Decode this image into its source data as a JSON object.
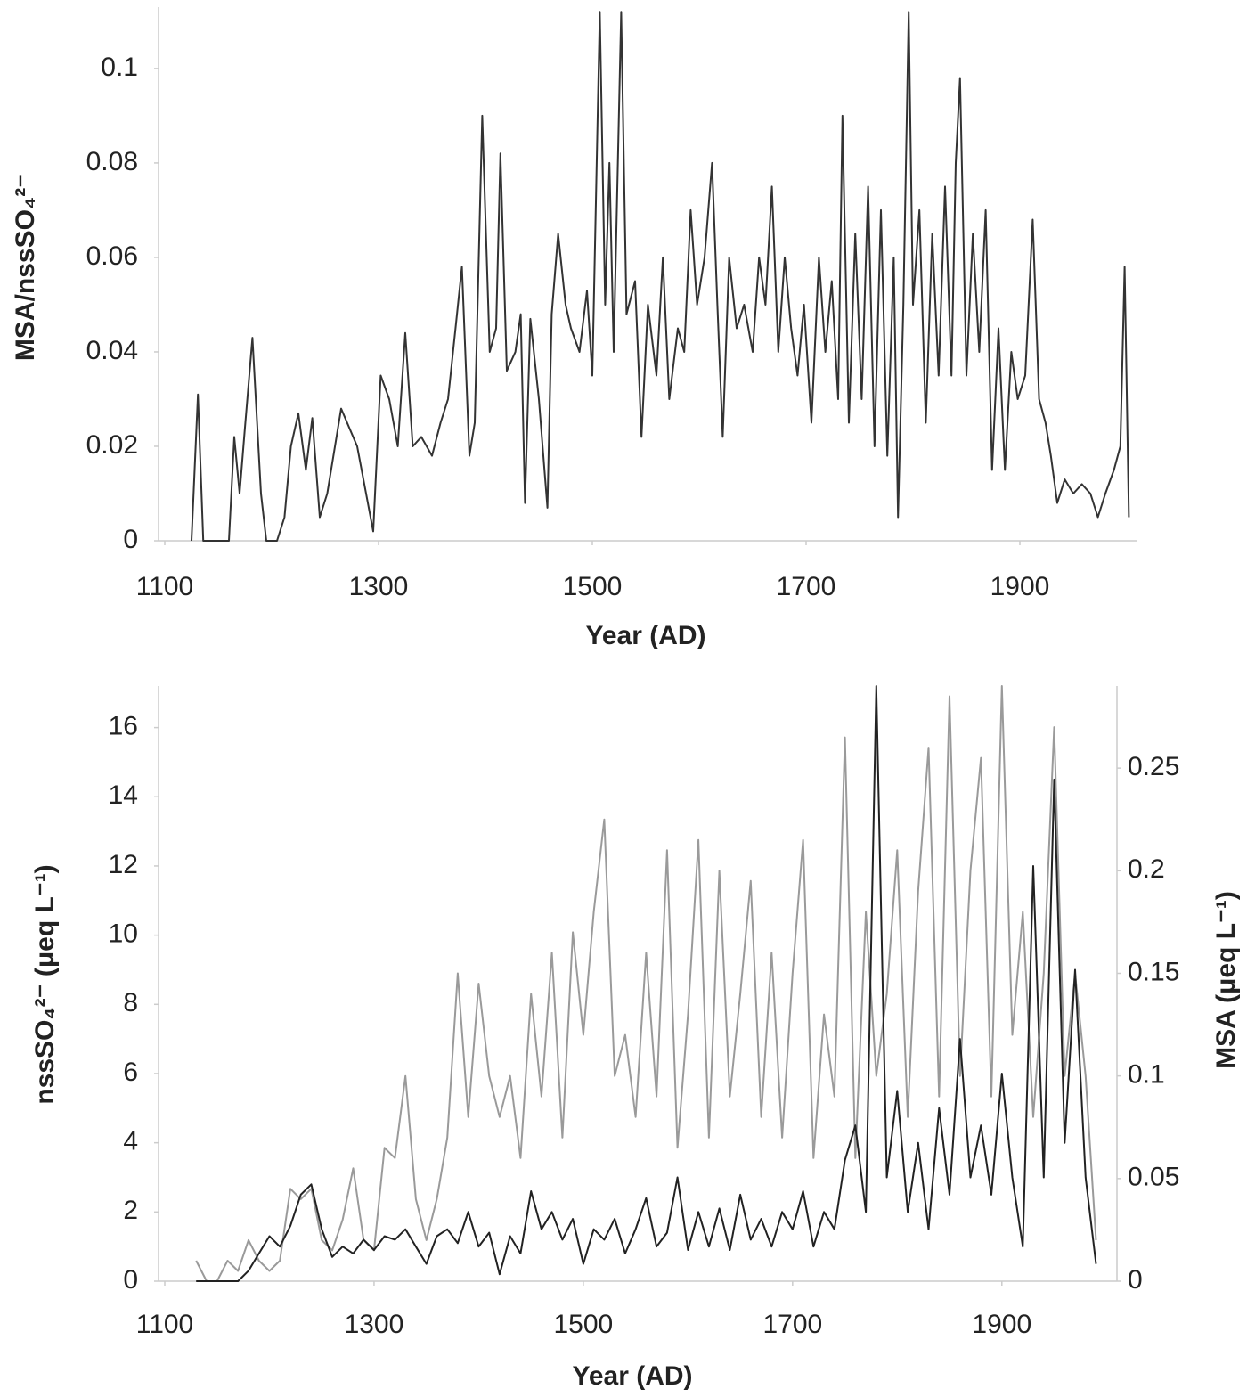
{
  "chart_data": [
    {
      "type": "line",
      "xlabel": "Year (AD)",
      "ylabel": "MSA/nssSO₄²⁻",
      "xlim": [
        1100,
        2010
      ],
      "xticks": [
        1100,
        1300,
        1500,
        1700,
        1900
      ],
      "ylim": [
        0,
        0.113
      ],
      "yticks": [
        0,
        0.02,
        0.04,
        0.06,
        0.08,
        0.1
      ],
      "grid": false,
      "x": [
        1125,
        1131,
        1136,
        1150,
        1160,
        1165,
        1170,
        1175,
        1182,
        1190,
        1195,
        1205,
        1212,
        1218,
        1225,
        1232,
        1238,
        1245,
        1252,
        1265,
        1280,
        1295,
        1302,
        1310,
        1318,
        1325,
        1332,
        1340,
        1350,
        1358,
        1365,
        1372,
        1378,
        1385,
        1390,
        1397,
        1404,
        1410,
        1414,
        1420,
        1428,
        1433,
        1437,
        1442,
        1450,
        1458,
        1462,
        1468,
        1475,
        1480,
        1488,
        1495,
        1500,
        1507,
        1512,
        1516,
        1520,
        1527,
        1532,
        1540,
        1546,
        1552,
        1560,
        1566,
        1572,
        1580,
        1586,
        1592,
        1598,
        1605,
        1612,
        1617,
        1622,
        1628,
        1635,
        1642,
        1650,
        1656,
        1662,
        1668,
        1674,
        1680,
        1686,
        1692,
        1698,
        1705,
        1712,
        1718,
        1724,
        1730,
        1734,
        1740,
        1746,
        1752,
        1758,
        1764,
        1770,
        1776,
        1782,
        1786,
        1791,
        1796,
        1800,
        1806,
        1812,
        1818,
        1824,
        1830,
        1836,
        1840,
        1844,
        1850,
        1856,
        1862,
        1868,
        1874,
        1880,
        1886,
        1892,
        1898,
        1905,
        1912,
        1918,
        1924,
        1929,
        1935,
        1942,
        1950,
        1958,
        1966,
        1973,
        1980,
        1988,
        1994,
        1998,
        2002
      ],
      "values": [
        0,
        0.031,
        0,
        0,
        0,
        0.022,
        0.01,
        0.024,
        0.043,
        0.01,
        0,
        0,
        0.005,
        0.02,
        0.027,
        0.015,
        0.026,
        0.005,
        0.01,
        0.028,
        0.02,
        0.002,
        0.035,
        0.03,
        0.02,
        0.044,
        0.02,
        0.022,
        0.018,
        0.025,
        0.03,
        0.045,
        0.058,
        0.018,
        0.025,
        0.09,
        0.04,
        0.045,
        0.082,
        0.036,
        0.04,
        0.048,
        0.008,
        0.047,
        0.03,
        0.007,
        0.048,
        0.065,
        0.05,
        0.045,
        0.04,
        0.053,
        0.035,
        0.112,
        0.05,
        0.08,
        0.04,
        0.112,
        0.048,
        0.055,
        0.022,
        0.05,
        0.035,
        0.06,
        0.03,
        0.045,
        0.04,
        0.07,
        0.05,
        0.06,
        0.08,
        0.05,
        0.022,
        0.06,
        0.045,
        0.05,
        0.04,
        0.06,
        0.05,
        0.075,
        0.04,
        0.06,
        0.045,
        0.035,
        0.05,
        0.025,
        0.06,
        0.04,
        0.055,
        0.03,
        0.09,
        0.025,
        0.065,
        0.03,
        0.075,
        0.02,
        0.07,
        0.018,
        0.06,
        0.005,
        0.05,
        0.112,
        0.05,
        0.07,
        0.025,
        0.065,
        0.035,
        0.075,
        0.035,
        0.08,
        0.098,
        0.035,
        0.065,
        0.04,
        0.07,
        0.015,
        0.045,
        0.015,
        0.04,
        0.03,
        0.035,
        0.068,
        0.03,
        0.025,
        0.018,
        0.008,
        0.013,
        0.01,
        0.012,
        0.01,
        0.005,
        0.01,
        0.015,
        0.02,
        0.058,
        0.005
      ],
      "color": "#333333"
    },
    {
      "type": "line",
      "xlabel": "Year (AD)",
      "ylabel": "nssSO₄²⁻ (μeq L⁻¹)",
      "y2label": "MSA (μeq L⁻¹)",
      "xlim": [
        1100,
        2010
      ],
      "xticks": [
        1100,
        1300,
        1500,
        1700,
        1900
      ],
      "ylim": [
        0,
        17.2
      ],
      "yticks": [
        0,
        2,
        4,
        6,
        8,
        10,
        12,
        14,
        16
      ],
      "y2lim": [
        0,
        0.29
      ],
      "y2ticks": [
        0,
        0.05,
        0.1,
        0.15,
        0.2,
        0.25
      ],
      "grid": false,
      "x": [
        1130,
        1140,
        1150,
        1160,
        1170,
        1180,
        1190,
        1200,
        1210,
        1220,
        1230,
        1240,
        1250,
        1260,
        1270,
        1280,
        1290,
        1300,
        1310,
        1320,
        1330,
        1340,
        1350,
        1360,
        1370,
        1380,
        1390,
        1400,
        1410,
        1420,
        1430,
        1440,
        1450,
        1460,
        1470,
        1480,
        1490,
        1500,
        1510,
        1520,
        1530,
        1540,
        1550,
        1560,
        1570,
        1580,
        1590,
        1600,
        1610,
        1620,
        1630,
        1640,
        1650,
        1660,
        1670,
        1680,
        1690,
        1700,
        1710,
        1720,
        1730,
        1740,
        1750,
        1760,
        1770,
        1780,
        1790,
        1800,
        1810,
        1820,
        1830,
        1840,
        1850,
        1860,
        1870,
        1880,
        1890,
        1900,
        1910,
        1920,
        1930,
        1940,
        1950,
        1960,
        1970,
        1980,
        1990
      ],
      "series": [
        {
          "color": "#9a9a9a",
          "axis": "y2",
          "values": [
            0.01,
            0,
            0,
            0.01,
            0.005,
            0.02,
            0.01,
            0.005,
            0.01,
            0.045,
            0.04,
            0.045,
            0.02,
            0.015,
            0.03,
            0.055,
            0.02,
            0.015,
            0.065,
            0.06,
            0.1,
            0.04,
            0.02,
            0.04,
            0.07,
            0.15,
            0.08,
            0.145,
            0.1,
            0.08,
            0.1,
            0.06,
            0.14,
            0.09,
            0.16,
            0.07,
            0.17,
            0.12,
            0.18,
            0.225,
            0.1,
            0.12,
            0.08,
            0.16,
            0.09,
            0.21,
            0.065,
            0.13,
            0.215,
            0.07,
            0.2,
            0.09,
            0.14,
            0.195,
            0.08,
            0.16,
            0.07,
            0.15,
            0.215,
            0.06,
            0.13,
            0.09,
            0.265,
            0.06,
            0.18,
            0.1,
            0.14,
            0.21,
            0.08,
            0.19,
            0.26,
            0.09,
            0.285,
            0.1,
            0.2,
            0.255,
            0.09,
            0.29,
            0.12,
            0.18,
            0.08,
            0.15,
            0.27,
            0.1,
            0.15,
            0.1,
            0.02
          ]
        },
        {
          "color": "#222222",
          "values": [
            0,
            0,
            0,
            0,
            0,
            0.3,
            0.8,
            1.3,
            1.0,
            1.6,
            2.5,
            2.8,
            1.5,
            0.7,
            1.0,
            0.8,
            1.2,
            0.9,
            1.3,
            1.2,
            1.5,
            1.0,
            0.5,
            1.3,
            1.5,
            1.1,
            2.0,
            1.0,
            1.4,
            0.2,
            1.3,
            0.8,
            2.6,
            1.5,
            2.0,
            1.2,
            1.8,
            0.5,
            1.5,
            1.2,
            1.8,
            0.8,
            1.5,
            2.4,
            1.0,
            1.4,
            3.0,
            0.9,
            2.0,
            1.0,
            2.1,
            0.9,
            2.5,
            1.2,
            1.8,
            1.0,
            2.0,
            1.5,
            2.6,
            1.0,
            2.0,
            1.5,
            3.5,
            4.5,
            2.0,
            17.2,
            3.0,
            5.5,
            2.0,
            4.0,
            1.5,
            5.0,
            2.5,
            7.0,
            3.0,
            4.5,
            2.5,
            6.0,
            3.0,
            1.0,
            12.0,
            3.0,
            14.5,
            4.0,
            9.0,
            3.0,
            0.5
          ]
        }
      ]
    }
  ]
}
